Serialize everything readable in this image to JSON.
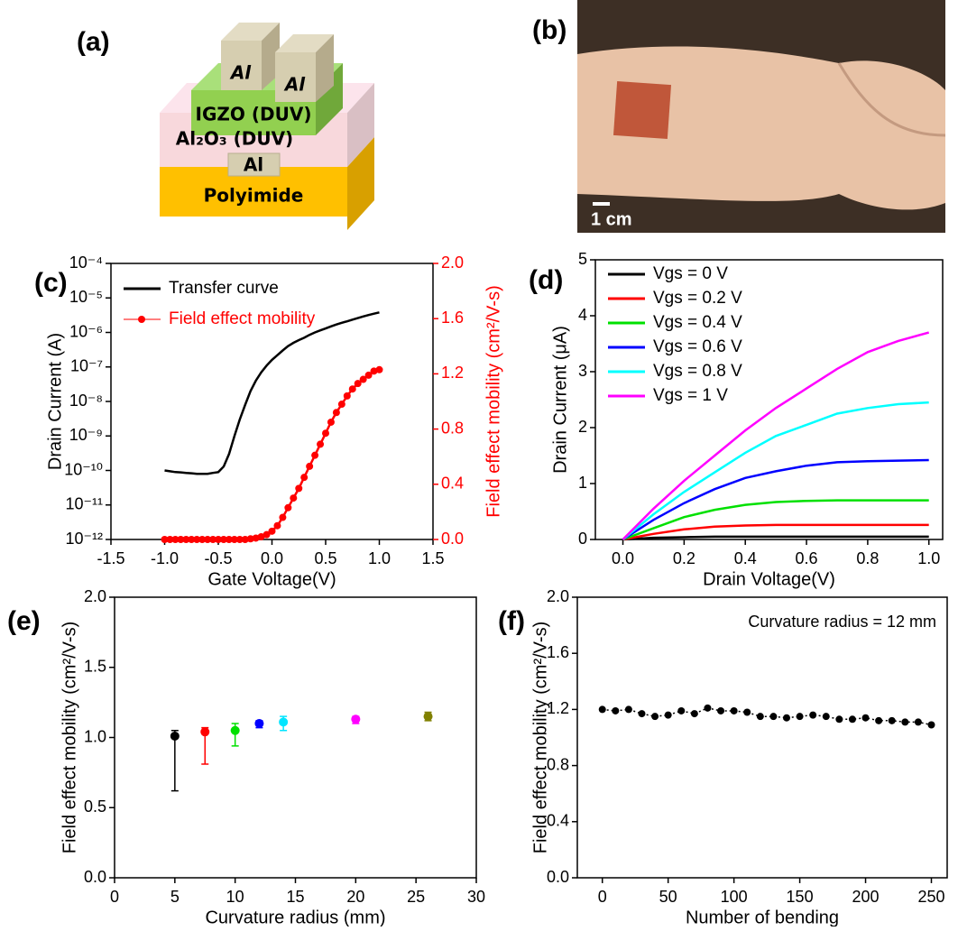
{
  "diagram": {
    "label": "(a)",
    "source_contact": "Al",
    "drain_contact": "Al",
    "semiconductor": "IGZO (DUV)",
    "dielectric": "Al₂O₃ (DUV)",
    "gate": "Al",
    "substrate": "Polyimide"
  },
  "photo": {
    "label": "(b)",
    "scale_bar": "1 cm"
  },
  "chart_data": [
    {
      "type": "line",
      "label": "(c)",
      "xlabel": "Gate Voltage(V)",
      "ylabel": "Drain Current (A)",
      "y2label": "Field effect mobility (cm²/V-s)",
      "xlim": [
        -1.5,
        1.5
      ],
      "xticks": [
        -1.5,
        {
          "value": -1,
          "label": "-1.0"
        },
        -0.5,
        {
          "value": 0,
          "label": "0.0"
        },
        0.5,
        {
          "value": 1,
          "label": "1.0"
        },
        1.5
      ],
      "ylim": [
        1e-12,
        0.0001
      ],
      "ylog": true,
      "yticks": [
        {
          "value": 1e-12,
          "label": "10⁻¹²"
        },
        {
          "value": 1e-11,
          "label": "10⁻¹¹"
        },
        {
          "value": 1e-10,
          "label": "10⁻¹⁰"
        },
        {
          "value": 1e-09,
          "label": "10⁻⁹"
        },
        {
          "value": 1e-08,
          "label": "10⁻⁸"
        },
        {
          "value": 1e-07,
          "label": "10⁻⁷"
        },
        {
          "value": 1e-06,
          "label": "10⁻⁶"
        },
        {
          "value": 1e-05,
          "label": "10⁻⁵"
        },
        {
          "value": 0.0001,
          "label": "10⁻⁴"
        }
      ],
      "y2lim": [
        0,
        2
      ],
      "y2ticks": [
        {
          "value": 0,
          "label": "0.0"
        },
        0.4,
        0.8,
        1.2,
        1.6,
        {
          "value": 2,
          "label": "2.0"
        }
      ],
      "legend": "upper left",
      "x": [
        -1,
        -0.95,
        -0.9,
        -0.85,
        -0.8,
        -0.75,
        -0.7,
        -0.65,
        -0.6,
        -0.55,
        -0.5,
        -0.45,
        -0.4,
        -0.35,
        -0.3,
        -0.25,
        -0.2,
        -0.15,
        -0.1,
        -0.05,
        0,
        0.05,
        0.1,
        0.15,
        0.2,
        0.25,
        0.3,
        0.35,
        0.4,
        0.45,
        0.5,
        0.55,
        0.6,
        0.65,
        0.7,
        0.75,
        0.8,
        0.85,
        0.9,
        0.95,
        1
      ],
      "series": [
        {
          "name": "Transfer curve",
          "color": "#000000",
          "values": [
            1e-10,
            9.5e-11,
            9e-11,
            8.8e-11,
            8.5e-11,
            8.3e-11,
            8e-11,
            8e-11,
            8e-11,
            8.5e-11,
            9e-11,
            1.3e-10,
            3e-10,
            1e-09,
            3e-09,
            8e-09,
            2e-08,
            4e-08,
            7e-08,
            1.1e-07,
            1.6e-07,
            2.2e-07,
            3e-07,
            4e-07,
            5e-07,
            6e-07,
            7e-07,
            8.5e-07,
            1e-06,
            1.15e-06,
            1.3e-06,
            1.5e-06,
            1.7e-06,
            1.9e-06,
            2.1e-06,
            2.35e-06,
            2.6e-06,
            2.9e-06,
            3.2e-06,
            3.5e-06,
            3.8e-06
          ]
        },
        {
          "name": "Field effect mobility",
          "color": "#ff0000",
          "axis": "y2",
          "marker": "circle",
          "values": [
            0,
            0,
            0,
            0,
            0,
            0,
            0,
            0,
            0,
            0,
            0,
            0,
            0,
            0,
            0,
            0,
            0.005,
            0.01,
            0.02,
            0.035,
            0.06,
            0.1,
            0.16,
            0.23,
            0.3,
            0.37,
            0.45,
            0.53,
            0.61,
            0.69,
            0.77,
            0.85,
            0.92,
            0.98,
            1.04,
            1.09,
            1.13,
            1.16,
            1.19,
            1.22,
            1.23
          ]
        }
      ]
    },
    {
      "type": "line",
      "label": "(d)",
      "xlabel": "Drain Voltage(V)",
      "ylabel": "Drain Current (μA)",
      "xlim": [
        -0.09,
        1.045
      ],
      "xticks": [
        {
          "value": 0,
          "label": "0.0"
        },
        0.2,
        0.4,
        0.6,
        0.8,
        {
          "value": 1,
          "label": "1.0"
        }
      ],
      "ylim": [
        0,
        5
      ],
      "yticks": [
        0,
        1,
        2,
        3,
        4,
        5
      ],
      "legend": "upper left",
      "x": [
        0,
        0.1,
        0.2,
        0.3,
        0.4,
        0.5,
        0.6,
        0.7,
        0.8,
        0.9,
        1
      ],
      "series": [
        {
          "name": "Vgs = 0 V",
          "color": "#000000",
          "values": [
            0,
            0.03,
            0.04,
            0.05,
            0.05,
            0.05,
            0.05,
            0.05,
            0.05,
            0.05,
            0.05
          ]
        },
        {
          "name": "Vgs = 0.2 V",
          "color": "#ff0000",
          "values": [
            0,
            0.1,
            0.18,
            0.23,
            0.25,
            0.26,
            0.26,
            0.26,
            0.26,
            0.26,
            0.26
          ]
        },
        {
          "name": "Vgs = 0.4 V",
          "color": "#00e000",
          "values": [
            0,
            0.2,
            0.4,
            0.53,
            0.62,
            0.67,
            0.69,
            0.7,
            0.7,
            0.7,
            0.7
          ]
        },
        {
          "name": "Vgs = 0.6 V",
          "color": "#0000ff",
          "values": [
            0,
            0.35,
            0.65,
            0.9,
            1.1,
            1.22,
            1.32,
            1.38,
            1.4,
            1.41,
            1.42
          ]
        },
        {
          "name": "Vgs = 0.8 V",
          "color": "#00ffff",
          "values": [
            0,
            0.45,
            0.85,
            1.2,
            1.55,
            1.85,
            2.05,
            2.25,
            2.35,
            2.42,
            2.45
          ]
        },
        {
          "name": "Vgs = 1 V",
          "color": "#ff00ff",
          "values": [
            0,
            0.55,
            1.05,
            1.5,
            1.95,
            2.35,
            2.7,
            3.05,
            3.35,
            3.55,
            3.7
          ]
        }
      ]
    },
    {
      "type": "scatter",
      "label": "(e)",
      "xlabel": "Curvature radius (mm)",
      "ylabel": "Field effect mobility (cm²/V-s)",
      "xlim": [
        0,
        30
      ],
      "xticks": [
        0,
        5,
        10,
        15,
        20,
        25,
        30
      ],
      "ylim": [
        0,
        2
      ],
      "yticks": [
        {
          "value": 0,
          "label": "0.0"
        },
        0.5,
        {
          "value": 1,
          "label": "1.0"
        },
        1.5,
        {
          "value": 2,
          "label": "2.0"
        }
      ],
      "x": [
        5,
        7.5,
        10,
        12,
        14,
        20,
        26
      ],
      "values": [
        1.01,
        1.04,
        1.05,
        1.1,
        1.11,
        1.13,
        1.15
      ],
      "errors_low": [
        0.39,
        0.23,
        0.11,
        0.03,
        0.06,
        0.03,
        0.03
      ],
      "errors_high": [
        0.04,
        0.03,
        0.05,
        0.02,
        0.04,
        0.02,
        0.03
      ],
      "colors": [
        "#000000",
        "#ff0000",
        "#00e000",
        "#0000ff",
        "#00e5ff",
        "#ff00ff",
        "#808000"
      ]
    },
    {
      "type": "line",
      "label": "(f)",
      "xlabel": "Number of bending",
      "ylabel": "Field effect mobility (cm²/V-s)",
      "annotation": "Curvature radius = 12 mm",
      "xlim": [
        -19,
        262
      ],
      "xticks": [
        0,
        50,
        100,
        150,
        200,
        250
      ],
      "ylim": [
        0,
        2
      ],
      "yticks": [
        {
          "value": 0,
          "label": "0.0"
        },
        0.4,
        0.8,
        1.2,
        1.6,
        {
          "value": 2,
          "label": "2.0"
        }
      ],
      "x": [
        0,
        10,
        20,
        30,
        40,
        50,
        60,
        70,
        80,
        90,
        100,
        110,
        120,
        130,
        140,
        150,
        160,
        170,
        180,
        190,
        200,
        210,
        220,
        230,
        240,
        250
      ],
      "series": [
        {
          "color": "#000000",
          "marker": "circle",
          "line_style": "dotted",
          "values": [
            1.2,
            1.19,
            1.2,
            1.17,
            1.15,
            1.16,
            1.19,
            1.17,
            1.21,
            1.19,
            1.19,
            1.18,
            1.15,
            1.15,
            1.14,
            1.15,
            1.16,
            1.15,
            1.13,
            1.13,
            1.14,
            1.12,
            1.12,
            1.11,
            1.11,
            1.09
          ]
        }
      ]
    }
  ]
}
